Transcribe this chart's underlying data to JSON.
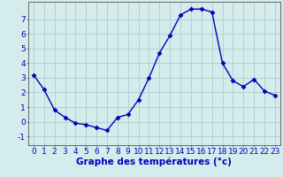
{
  "hours": [
    0,
    1,
    2,
    3,
    4,
    5,
    6,
    7,
    8,
    9,
    10,
    11,
    12,
    13,
    14,
    15,
    16,
    17,
    18,
    19,
    20,
    21,
    22,
    23
  ],
  "temps": [
    3.2,
    2.2,
    0.8,
    0.3,
    -0.1,
    -0.2,
    -0.4,
    -0.6,
    0.3,
    0.5,
    1.5,
    3.0,
    4.7,
    5.9,
    7.3,
    7.7,
    7.7,
    7.5,
    4.0,
    2.8,
    2.4,
    2.9,
    2.1,
    1.8
  ],
  "line_color": "#0000bb",
  "marker": "D",
  "marker_size": 2.5,
  "bg_color": "#d4ecec",
  "grid_color": "#b0cccc",
  "xlabel": "Graphe des températures (°c)",
  "xlabel_color": "#0000bb",
  "xlabel_fontsize": 7.5,
  "ylabel_ticks": [
    -1,
    0,
    1,
    2,
    3,
    4,
    5,
    6,
    7
  ],
  "ylim": [
    -1.6,
    8.2
  ],
  "xlim": [
    -0.5,
    23.5
  ],
  "tick_label_color": "#0000bb",
  "tick_fontsize": 6.5,
  "linewidth": 1.0
}
